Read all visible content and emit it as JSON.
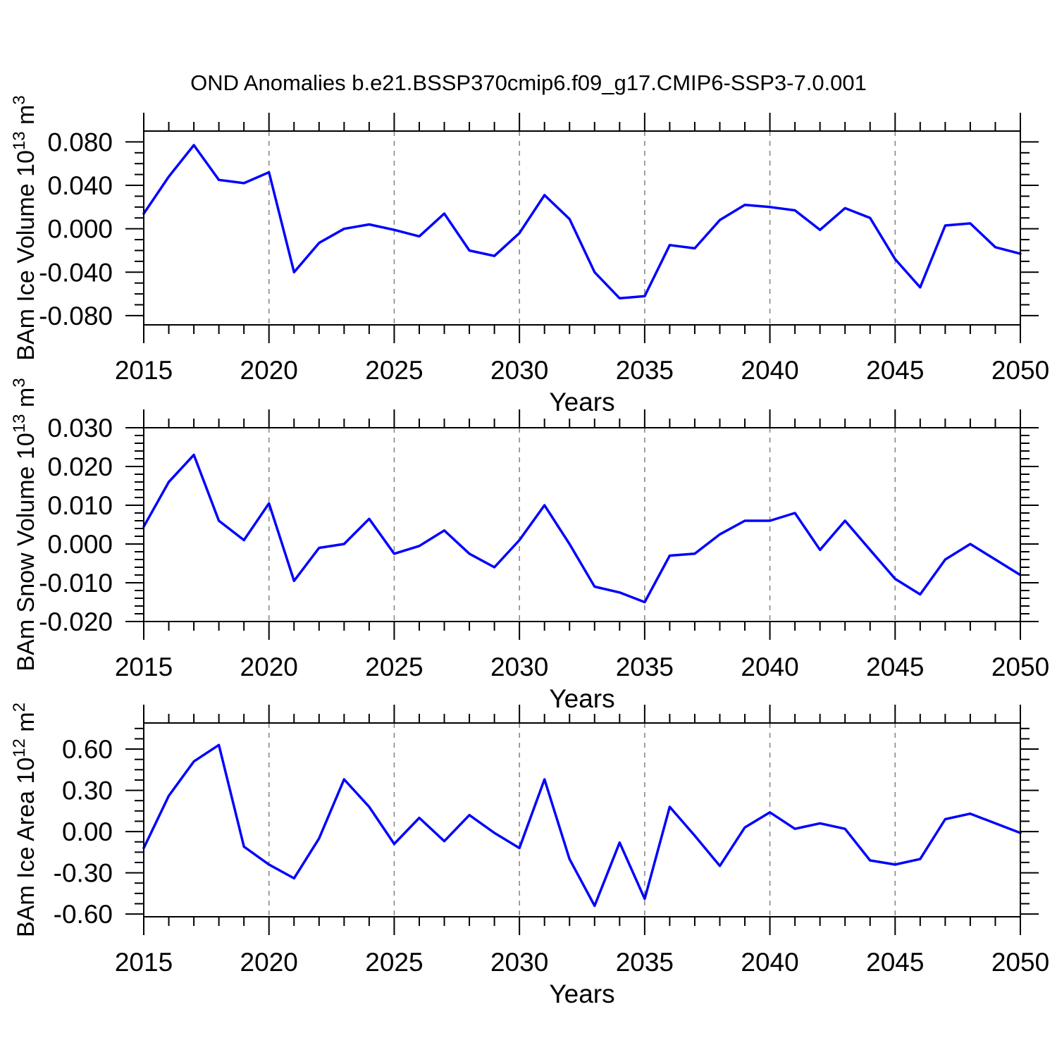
{
  "title": "OND Anomalies b.e21.BSSP370cmip6.f09_g17.CMIP6-SSP3-7.0.001",
  "accent_color": "#0000ff",
  "grid_color": "#888888",
  "axis_color": "#000000",
  "chart_data": [
    {
      "type": "line",
      "name": "ice-volume",
      "ylabel": {
        "base": "BAm Ice Volume 10",
        "sup1": "13",
        "mid": " m",
        "sup2": "3"
      },
      "xlabel": "Years",
      "line_color": "#0000ff",
      "x": [
        2015,
        2016,
        2017,
        2018,
        2019,
        2020,
        2021,
        2022,
        2023,
        2024,
        2025,
        2026,
        2027,
        2028,
        2029,
        2030,
        2031,
        2032,
        2033,
        2034,
        2035,
        2036,
        2037,
        2038,
        2039,
        2040,
        2041,
        2042,
        2043,
        2044,
        2045,
        2046,
        2047,
        2048,
        2049,
        2050
      ],
      "values": [
        0.014,
        0.048,
        0.077,
        0.045,
        0.042,
        0.052,
        -0.04,
        -0.013,
        0.0,
        0.004,
        -0.001,
        -0.007,
        0.014,
        -0.02,
        -0.025,
        -0.004,
        0.031,
        0.009,
        -0.04,
        -0.064,
        -0.062,
        -0.015,
        -0.018,
        0.008,
        0.022,
        0.02,
        0.017,
        -0.001,
        0.019,
        0.01,
        -0.028,
        -0.054,
        0.003,
        0.005,
        -0.017,
        -0.023
      ],
      "ylim": [
        -0.0885,
        0.09
      ],
      "yticks": [
        0.08,
        0.04,
        0.0,
        -0.04,
        -0.08
      ],
      "ytick_labels": [
        "0.080",
        "0.040",
        "0.000",
        "-0.040",
        "-0.080"
      ],
      "yminor_step": 0.01,
      "xticks": [
        2015,
        2020,
        2025,
        2030,
        2035,
        2040,
        2045,
        2050
      ],
      "xtick_labels": [
        "2015",
        "2020",
        "2025",
        "2030",
        "2035",
        "2040",
        "2045",
        "2050"
      ],
      "xminor_step": 1,
      "vgrid_years": [
        2020,
        2025,
        2030,
        2035,
        2040,
        2045
      ]
    },
    {
      "type": "line",
      "name": "snow-volume",
      "ylabel": {
        "base": "BAm Snow Volume 10",
        "sup1": "13",
        "mid": " m",
        "sup2": "3"
      },
      "xlabel": "Years",
      "line_color": "#0000ff",
      "x": [
        2015,
        2016,
        2017,
        2018,
        2019,
        2020,
        2021,
        2022,
        2023,
        2024,
        2025,
        2026,
        2027,
        2028,
        2029,
        2030,
        2031,
        2032,
        2033,
        2034,
        2035,
        2036,
        2037,
        2038,
        2039,
        2040,
        2041,
        2042,
        2043,
        2044,
        2045,
        2046,
        2047,
        2048,
        2049,
        2050
      ],
      "values": [
        0.0045,
        0.016,
        0.023,
        0.006,
        0.001,
        0.0105,
        -0.0095,
        -0.001,
        0.0,
        0.0065,
        -0.0025,
        -0.0005,
        0.0035,
        -0.0025,
        -0.006,
        0.001,
        0.01,
        0.0,
        -0.011,
        -0.0125,
        -0.015,
        -0.003,
        -0.0025,
        0.0025,
        0.006,
        0.006,
        0.008,
        -0.0015,
        0.006,
        -0.0015,
        -0.009,
        -0.013,
        -0.004,
        0.0,
        -0.004,
        -0.008
      ],
      "ylim": [
        -0.02,
        0.03
      ],
      "yticks": [
        0.03,
        0.02,
        0.01,
        0.0,
        -0.01,
        -0.02
      ],
      "ytick_labels": [
        "0.030",
        "0.020",
        "0.010",
        "0.000",
        "-0.010",
        "-0.020"
      ],
      "yminor_step": 0.002,
      "xticks": [
        2015,
        2020,
        2025,
        2030,
        2035,
        2040,
        2045,
        2050
      ],
      "xtick_labels": [
        "2015",
        "2020",
        "2025",
        "2030",
        "2035",
        "2040",
        "2045",
        "2050"
      ],
      "xminor_step": 1,
      "vgrid_years": [
        2020,
        2025,
        2030,
        2035,
        2040,
        2045
      ]
    },
    {
      "type": "line",
      "name": "ice-area",
      "ylabel": {
        "base": "BAm Ice Area 10",
        "sup1": "12",
        "mid": " m",
        "sup2": "2"
      },
      "xlabel": "Years",
      "line_color": "#0000ff",
      "x": [
        2015,
        2016,
        2017,
        2018,
        2019,
        2020,
        2021,
        2022,
        2023,
        2024,
        2025,
        2026,
        2027,
        2028,
        2029,
        2030,
        2031,
        2032,
        2033,
        2034,
        2035,
        2036,
        2037,
        2038,
        2039,
        2040,
        2041,
        2042,
        2043,
        2044,
        2045,
        2046,
        2047,
        2048,
        2049,
        2050
      ],
      "values": [
        -0.12,
        0.26,
        0.51,
        0.63,
        -0.11,
        -0.24,
        -0.34,
        -0.05,
        0.38,
        0.18,
        -0.09,
        0.1,
        -0.07,
        0.12,
        -0.01,
        -0.12,
        0.38,
        -0.2,
        -0.54,
        -0.08,
        -0.49,
        0.18,
        -0.03,
        -0.25,
        0.03,
        0.14,
        0.02,
        0.06,
        0.02,
        -0.21,
        -0.24,
        -0.2,
        0.09,
        0.13,
        0.06,
        -0.01
      ],
      "ylim": [
        -0.62,
        0.79
      ],
      "yticks": [
        0.6,
        0.3,
        0.0,
        -0.3,
        -0.6
      ],
      "ytick_labels": [
        "0.60",
        "0.30",
        "0.00",
        "-0.30",
        "-0.60"
      ],
      "yminor_step": 0.075,
      "xticks": [
        2015,
        2020,
        2025,
        2030,
        2035,
        2040,
        2045,
        2050
      ],
      "xtick_labels": [
        "2015",
        "2020",
        "2025",
        "2030",
        "2035",
        "2040",
        "2045",
        "2050"
      ],
      "xminor_step": 1,
      "vgrid_years": [
        2020,
        2025,
        2030,
        2035,
        2040,
        2045
      ]
    }
  ]
}
